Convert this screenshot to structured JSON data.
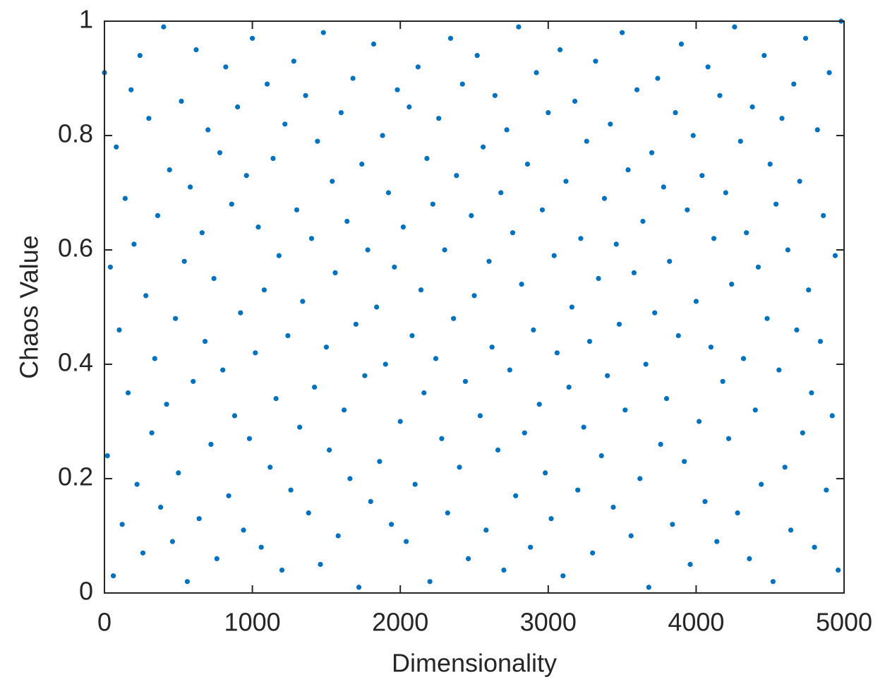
{
  "chart_data": {
    "type": "scatter",
    "xlabel": "Dimensionality",
    "ylabel": "Chaos Value",
    "color": "#0072bd",
    "grid": false,
    "xlim": [
      0,
      5000
    ],
    "ylim": [
      0,
      1
    ],
    "xticks": [
      0,
      1000,
      2000,
      3000,
      4000,
      5000
    ],
    "yticks": [
      0,
      0.2,
      0.4,
      0.6,
      0.8,
      1
    ],
    "x": [
      0,
      20,
      40,
      60,
      80,
      100,
      120,
      140,
      160,
      180,
      200,
      220,
      240,
      260,
      280,
      300,
      320,
      340,
      360,
      380,
      400,
      420,
      440,
      460,
      480,
      500,
      520,
      540,
      560,
      580,
      600,
      620,
      640,
      660,
      680,
      700,
      720,
      740,
      760,
      780,
      800,
      820,
      840,
      860,
      880,
      900,
      920,
      940,
      960,
      980,
      1000,
      1020,
      1040,
      1060,
      1080,
      1100,
      1120,
      1140,
      1160,
      1180,
      1200,
      1220,
      1240,
      1260,
      1280,
      1300,
      1320,
      1340,
      1360,
      1380,
      1400,
      1420,
      1440,
      1460,
      1480,
      1500,
      1520,
      1540,
      1560,
      1580,
      1600,
      1620,
      1640,
      1660,
      1680,
      1700,
      1720,
      1740,
      1760,
      1780,
      1800,
      1820,
      1840,
      1860,
      1880,
      1900,
      1920,
      1940,
      1960,
      1980,
      2000,
      2020,
      2040,
      2060,
      2080,
      2100,
      2120,
      2140,
      2160,
      2180,
      2200,
      2220,
      2240,
      2260,
      2280,
      2300,
      2320,
      2340,
      2360,
      2380,
      2400,
      2420,
      2440,
      2460,
      2480,
      2500,
      2520,
      2540,
      2560,
      2580,
      2600,
      2620,
      2640,
      2660,
      2680,
      2700,
      2720,
      2740,
      2760,
      2780,
      2800,
      2820,
      2840,
      2860,
      2880,
      2900,
      2920,
      2940,
      2960,
      2980,
      3000,
      3020,
      3040,
      3060,
      3080,
      3100,
      3120,
      3140,
      3160,
      3180,
      3200,
      3220,
      3240,
      3260,
      3280,
      3300,
      3320,
      3340,
      3360,
      3380,
      3400,
      3420,
      3440,
      3460,
      3480,
      3500,
      3520,
      3540,
      3560,
      3580,
      3600,
      3620,
      3640,
      3660,
      3680,
      3700,
      3720,
      3740,
      3760,
      3780,
      3800,
      3820,
      3840,
      3860,
      3880,
      3900,
      3920,
      3940,
      3960,
      3980,
      4000,
      4020,
      4040,
      4060,
      4080,
      4100,
      4120,
      4140,
      4160,
      4180,
      4200,
      4220,
      4240,
      4260,
      4280,
      4300,
      4320,
      4340,
      4360,
      4380,
      4400,
      4420,
      4440,
      4460,
      4480,
      4500,
      4520,
      4540,
      4560,
      4580,
      4600,
      4620,
      4640,
      4660,
      4680,
      4700,
      4720,
      4740,
      4760,
      4780,
      4800,
      4820,
      4840,
      4860,
      4880,
      4900,
      4920,
      4940,
      4960,
      4980
    ],
    "values": [
      0.91,
      0.24,
      0.57,
      0.03,
      0.78,
      0.46,
      0.12,
      0.69,
      0.35,
      0.88,
      0.61,
      0.19,
      0.94,
      0.07,
      0.52,
      0.83,
      0.28,
      0.41,
      0.66,
      0.15,
      0.99,
      0.33,
      0.74,
      0.09,
      0.48,
      0.21,
      0.86,
      0.58,
      0.02,
      0.71,
      0.37,
      0.95,
      0.13,
      0.63,
      0.44,
      0.81,
      0.26,
      0.55,
      0.06,
      0.77,
      0.39,
      0.92,
      0.17,
      0.68,
      0.31,
      0.85,
      0.49,
      0.11,
      0.73,
      0.27,
      0.97,
      0.42,
      0.64,
      0.08,
      0.53,
      0.89,
      0.22,
      0.76,
      0.34,
      0.59,
      0.04,
      0.82,
      0.45,
      0.18,
      0.93,
      0.67,
      0.29,
      0.51,
      0.87,
      0.14,
      0.62,
      0.36,
      0.79,
      0.05,
      0.98,
      0.43,
      0.25,
      0.72,
      0.56,
      0.1,
      0.84,
      0.32,
      0.65,
      0.2,
      0.9,
      0.47,
      0.01,
      0.75,
      0.38,
      0.6,
      0.16,
      0.96,
      0.5,
      0.23,
      0.8,
      0.4,
      0.7,
      0.12,
      0.57,
      0.88,
      0.3,
      0.64,
      0.09,
      0.85,
      0.45,
      0.19,
      0.92,
      0.53,
      0.35,
      0.76,
      0.02,
      0.68,
      0.41,
      0.83,
      0.27,
      0.6,
      0.14,
      0.97,
      0.48,
      0.73,
      0.22,
      0.89,
      0.37,
      0.06,
      0.66,
      0.52,
      0.94,
      0.31,
      0.78,
      0.11,
      0.58,
      0.43,
      0.87,
      0.25,
      0.7,
      0.04,
      0.81,
      0.39,
      0.63,
      0.17,
      0.99,
      0.54,
      0.28,
      0.75,
      0.08,
      0.46,
      0.91,
      0.33,
      0.67,
      0.21,
      0.84,
      0.13,
      0.59,
      0.42,
      0.95,
      0.03,
      0.72,
      0.36,
      0.5,
      0.86,
      0.18,
      0.62,
      0.29,
      0.79,
      0.44,
      0.07,
      0.93,
      0.55,
      0.24,
      0.69,
      0.38,
      0.82,
      0.15,
      0.61,
      0.47,
      0.98,
      0.32,
      0.74,
      0.1,
      0.56,
      0.88,
      0.2,
      0.65,
      0.4,
      0.01,
      0.77,
      0.49,
      0.9,
      0.26,
      0.71,
      0.34,
      0.58,
      0.12,
      0.84,
      0.45,
      0.96,
      0.23,
      0.67,
      0.05,
      0.8,
      0.51,
      0.3,
      0.73,
      0.16,
      0.92,
      0.43,
      0.62,
      0.09,
      0.87,
      0.37,
      0.7,
      0.27,
      0.54,
      0.99,
      0.14,
      0.79,
      0.41,
      0.63,
      0.06,
      0.85,
      0.32,
      0.57,
      0.19,
      0.94,
      0.48,
      0.75,
      0.02,
      0.68,
      0.39,
      0.83,
      0.22,
      0.6,
      0.11,
      0.89,
      0.46,
      0.72,
      0.28,
      0.97,
      0.53,
      0.35,
      0.08,
      0.81,
      0.44,
      0.66,
      0.18,
      0.91,
      0.31,
      0.59,
      0.04,
      1.0
    ]
  }
}
